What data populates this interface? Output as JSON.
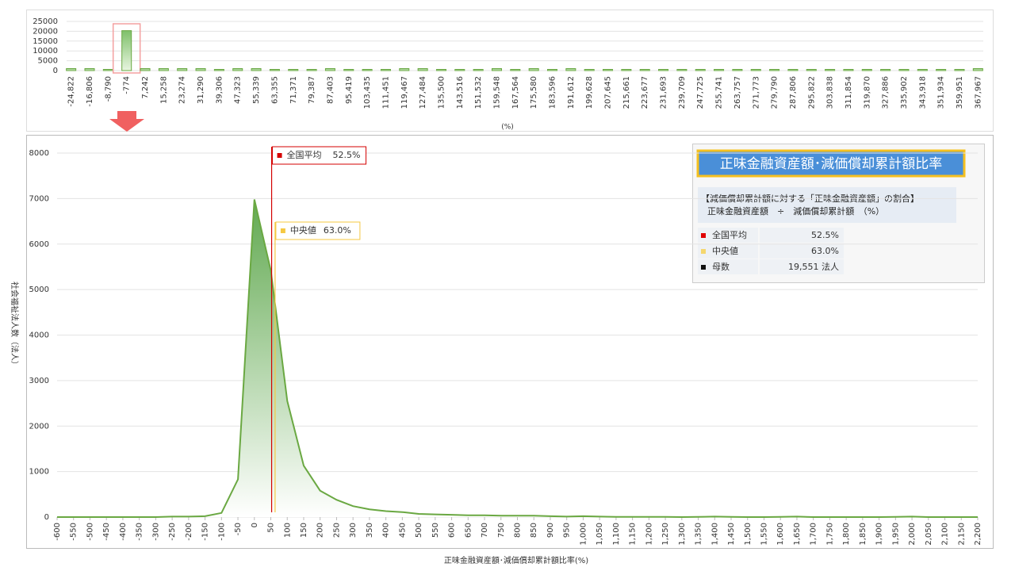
{
  "chart_data": [
    {
      "type": "bar",
      "xlabel": "(%)",
      "color": "#6aa842",
      "highlight_index": 3,
      "categories": [
        "-24,822",
        "-16,806",
        "-8,790",
        "-774",
        "7,242",
        "15,258",
        "23,274",
        "31,290",
        "39,306",
        "47,323",
        "55,339",
        "63,355",
        "71,371",
        "79,387",
        "87,403",
        "95,419",
        "103,435",
        "111,451",
        "119,467",
        "127,484",
        "135,500",
        "143,516",
        "151,532",
        "159,548",
        "167,564",
        "175,580",
        "183,596",
        "191,612",
        "199,628",
        "207,645",
        "215,661",
        "223,677",
        "231,693",
        "239,709",
        "247,725",
        "255,741",
        "263,757",
        "271,773",
        "279,790",
        "287,806",
        "295,822",
        "303,838",
        "311,854",
        "319,870",
        "327,886",
        "335,902",
        "343,918",
        "351,934",
        "359,951",
        "367,967"
      ],
      "values": [
        400,
        400,
        0,
        19700,
        400,
        400,
        400,
        400,
        0,
        400,
        400,
        0,
        0,
        0,
        400,
        0,
        0,
        0,
        400,
        400,
        0,
        0,
        0,
        400,
        0,
        400,
        0,
        400,
        0,
        0,
        0,
        0,
        0,
        0,
        0,
        0,
        0,
        0,
        0,
        0,
        0,
        0,
        0,
        0,
        0,
        0,
        0,
        0,
        0,
        400
      ],
      "ylim": [
        0,
        25000
      ],
      "yticks": [
        0,
        5000,
        10000,
        15000,
        20000,
        25000
      ],
      "grid": true
    },
    {
      "type": "area",
      "xlabel": "正味金融資産額･減価償却累計額比率(%)",
      "ylabel": "社会福祉法人数（法人）",
      "color": "#6aa842",
      "x": [
        -600,
        -550,
        -500,
        -450,
        -400,
        -350,
        -300,
        -250,
        -200,
        -150,
        -100,
        -50,
        0,
        50,
        100,
        150,
        200,
        250,
        300,
        350,
        400,
        450,
        500,
        550,
        600,
        650,
        700,
        750,
        800,
        850,
        900,
        950,
        1000,
        1050,
        1100,
        1150,
        1200,
        1250,
        1300,
        1350,
        1400,
        1450,
        1500,
        1550,
        1600,
        1650,
        1700,
        1750,
        1800,
        1850,
        1900,
        1950,
        2000,
        2050,
        2100,
        2150,
        2200
      ],
      "values": [
        0,
        0,
        0,
        0,
        0,
        0,
        0,
        10,
        10,
        20,
        90,
        830,
        6980,
        5420,
        2550,
        1130,
        580,
        380,
        240,
        170,
        130,
        110,
        70,
        60,
        50,
        40,
        40,
        30,
        30,
        30,
        20,
        10,
        20,
        10,
        5,
        5,
        5,
        5,
        0,
        5,
        10,
        5,
        0,
        0,
        5,
        10,
        0,
        0,
        0,
        0,
        0,
        5,
        10,
        0,
        0,
        0,
        0
      ],
      "xlim": [
        -600,
        2200
      ],
      "xticks": [
        -600,
        -550,
        -500,
        -450,
        -400,
        -350,
        -300,
        -250,
        -200,
        -150,
        -100,
        -50,
        0,
        50,
        100,
        150,
        200,
        250,
        300,
        350,
        400,
        450,
        500,
        550,
        600,
        650,
        700,
        750,
        800,
        850,
        900,
        950,
        {
          "value": 1000,
          "label": "1,000"
        },
        {
          "value": 1050,
          "label": "1,050"
        },
        {
          "value": 1100,
          "label": "1,100"
        },
        {
          "value": 1150,
          "label": "1,150"
        },
        {
          "value": 1200,
          "label": "1,200"
        },
        {
          "value": 1250,
          "label": "1,250"
        },
        {
          "value": 1300,
          "label": "1,300"
        },
        {
          "value": 1350,
          "label": "1,350"
        },
        {
          "value": 1400,
          "label": "1,400"
        },
        {
          "value": 1450,
          "label": "1,450"
        },
        {
          "value": 1500,
          "label": "1,500"
        },
        {
          "value": 1550,
          "label": "1,550"
        },
        {
          "value": 1600,
          "label": "1,600"
        },
        {
          "value": 1650,
          "label": "1,650"
        },
        {
          "value": 1700,
          "label": "1,700"
        },
        {
          "value": 1750,
          "label": "1,750"
        },
        {
          "value": 1800,
          "label": "1,800"
        },
        {
          "value": 1850,
          "label": "1,850"
        },
        {
          "value": 1900,
          "label": "1,900"
        },
        {
          "value": 1950,
          "label": "1,950"
        },
        {
          "value": 2000,
          "label": "2,000"
        },
        {
          "value": 2050,
          "label": "2,050"
        },
        {
          "value": 2100,
          "label": "2,100"
        },
        {
          "value": 2150,
          "label": "2,150"
        },
        {
          "value": 2200,
          "label": "2,200"
        }
      ],
      "ylim": [
        0,
        8000
      ],
      "yticks": [
        0,
        1000,
        2000,
        3000,
        4000,
        5000,
        6000,
        7000,
        8000
      ],
      "grid": true,
      "annotations": [
        {
          "label": "全国平均",
          "value": 52.5,
          "value_label": "52.5%",
          "color": "#d40000"
        },
        {
          "label": "中央値",
          "value": 63.0,
          "value_label": "63.0%",
          "color": "#f5c842"
        }
      ]
    }
  ],
  "panel": {
    "title": "正味金融資産額･減価償却累計額比率",
    "subtitle": "【減価償却累計額に対する「正味金融資産額」の割合】",
    "formula": "正味金融資産額　÷　減価償却累計額　（%）",
    "rows": [
      {
        "color": "#e00000",
        "label": "全国平均",
        "value": "52.5%"
      },
      {
        "color": "#f5d76e",
        "label": "中央値",
        "value": "63.0%"
      },
      {
        "color": "#111111",
        "label": "母数",
        "value": "19,551 法人"
      }
    ]
  }
}
